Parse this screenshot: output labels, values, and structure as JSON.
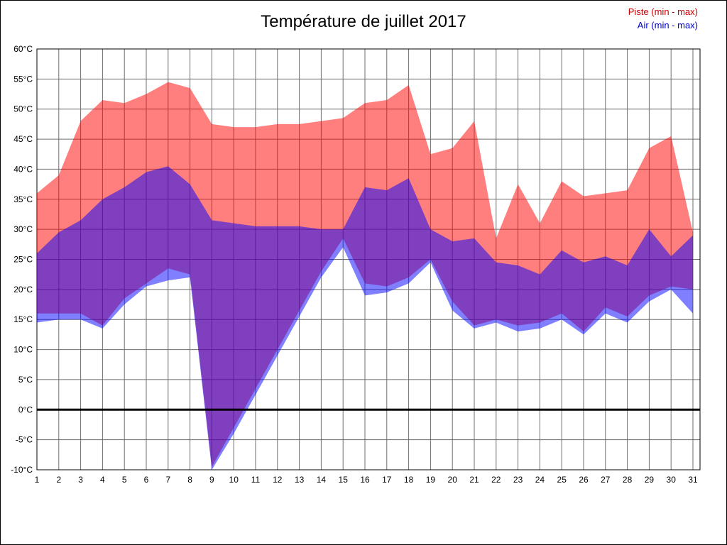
{
  "figure": {
    "title": "Température de juillet 2017",
    "legend": [
      {
        "label": "Piste (min - max)",
        "color": "#cc0000"
      },
      {
        "label": "Air (min - max)",
        "color": "#0000cc"
      }
    ]
  },
  "chart_data": {
    "type": "area",
    "title": "Température de juillet 2017",
    "xlabel": "",
    "ylabel": "°C",
    "ylim": [
      -10,
      60
    ],
    "ytick_step": 5,
    "ytick_labels": [
      "60°C",
      "55°C",
      "50°C",
      "45°C",
      "40°C",
      "35°C",
      "30°C",
      "25°C",
      "20°C",
      "15°C",
      "10°C",
      "5°C",
      "0°C",
      "-5°C",
      "-10°C"
    ],
    "categories": [
      1,
      2,
      3,
      4,
      5,
      6,
      7,
      8,
      9,
      10,
      11,
      12,
      13,
      14,
      15,
      16,
      17,
      18,
      19,
      20,
      21,
      22,
      23,
      24,
      25,
      26,
      27,
      28,
      29,
      30,
      31
    ],
    "grid": true,
    "zero_line": true,
    "legend_position": "top-right",
    "series": [
      {
        "name": "Piste (min - max)",
        "band_name": "piste-band",
        "color": "#ff0000",
        "opacity": 0.5,
        "max": [
          36,
          39,
          48,
          51.5,
          51,
          52.5,
          54.5,
          53.5,
          47.5,
          47,
          47,
          47.5,
          47.5,
          48,
          48.5,
          51,
          51.5,
          54,
          42.5,
          43.5,
          48,
          28.5,
          37.5,
          31,
          38,
          35.5,
          36,
          36.5,
          43.5,
          45.5,
          29.5
        ],
        "min": [
          16,
          16,
          16,
          14,
          18.5,
          21,
          23.5,
          22.5,
          -9.5,
          -3,
          3.5,
          10,
          16.5,
          23,
          28.5,
          21,
          20.5,
          22,
          25,
          18,
          14,
          15,
          14,
          14.5,
          16,
          13,
          17,
          15.5,
          19,
          20.5,
          20
        ]
      },
      {
        "name": "Air (min - max)",
        "band_name": "air-band",
        "color": "#0000ff",
        "opacity": 0.5,
        "max": [
          26,
          29.5,
          31.5,
          35,
          37,
          39.5,
          40.5,
          37.5,
          31.5,
          31,
          30.5,
          30.5,
          30.5,
          30,
          30,
          37,
          36.5,
          38.5,
          30,
          28,
          28.5,
          24.5,
          24,
          22.5,
          26.5,
          24.5,
          25.5,
          24,
          30,
          25.5,
          29
        ],
        "min": [
          14.5,
          15,
          15,
          13.5,
          17.5,
          20.5,
          21.5,
          22,
          -10,
          -4,
          2.5,
          9,
          15.5,
          22,
          27,
          19,
          19.5,
          21,
          24.5,
          16.5,
          13.5,
          14.5,
          13,
          13.5,
          15,
          12.5,
          16,
          14.5,
          18,
          20,
          16
        ]
      }
    ]
  }
}
